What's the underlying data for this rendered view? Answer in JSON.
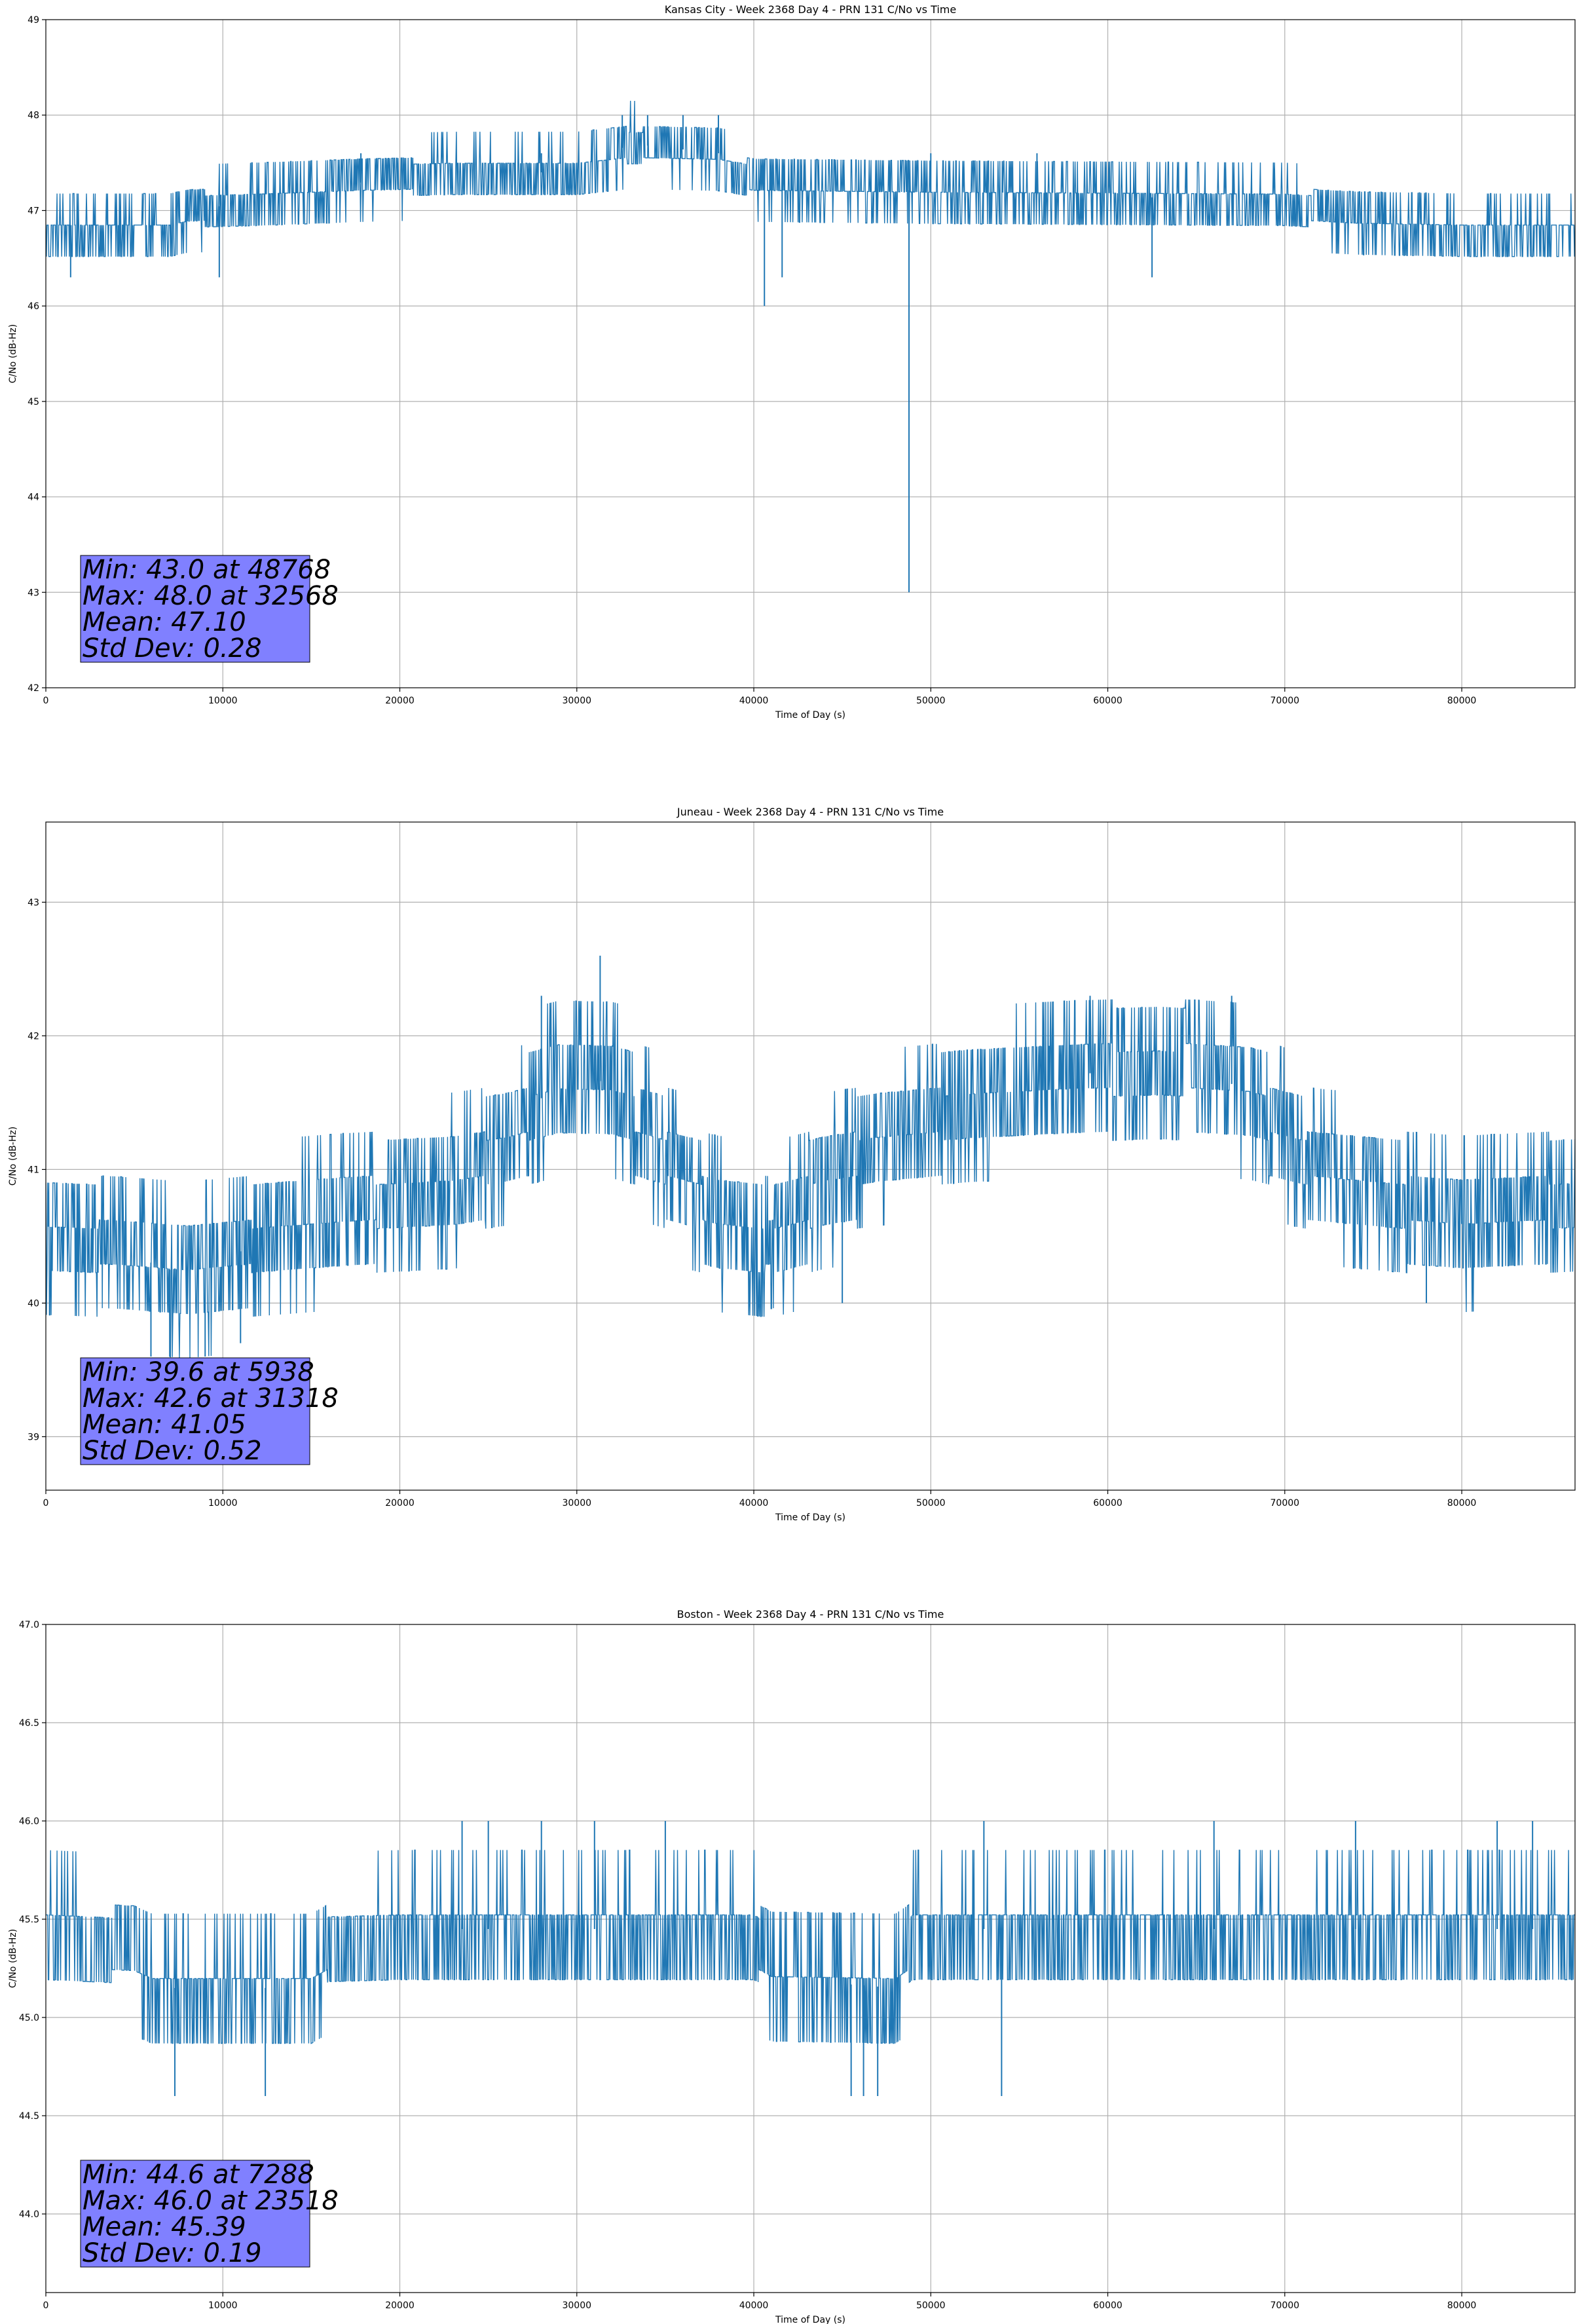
{
  "chart_data": [
    {
      "type": "line",
      "title": "Kansas City - Week 2368 Day 4 - PRN 131 C/No vs Time",
      "xlabel": "Time of Day (s)",
      "ylabel": "C/No (dB-Hz)",
      "xlim": [
        0,
        86400
      ],
      "ylim": [
        42,
        49
      ],
      "xticks": [
        0,
        10000,
        20000,
        30000,
        40000,
        50000,
        60000,
        70000,
        80000
      ],
      "yticks": [
        "42",
        "43",
        "44",
        "45",
        "46",
        "47",
        "48",
        "49"
      ],
      "grid": true,
      "color": "#1f77b4",
      "stats": [
        "Min: 43.0 at 48768",
        "Max: 48.0 at 32568",
        "Mean: 47.10",
        "Std Dev: 0.28"
      ],
      "profile": [
        [
          0,
          46.8
        ],
        [
          7000,
          46.8
        ],
        [
          8000,
          47.0
        ],
        [
          12000,
          47.1
        ],
        [
          18000,
          47.3
        ],
        [
          23000,
          47.4
        ],
        [
          30000,
          47.4
        ],
        [
          33000,
          47.7
        ],
        [
          38000,
          47.6
        ],
        [
          40000,
          47.3
        ],
        [
          50000,
          47.2
        ],
        [
          60000,
          47.15
        ],
        [
          70000,
          47.1
        ],
        [
          74000,
          46.9
        ],
        [
          80000,
          46.8
        ],
        [
          86400,
          46.8
        ]
      ],
      "spread": 0.33,
      "spikes": [
        [
          48768,
          43.0
        ],
        [
          40600,
          46.0
        ],
        [
          41600,
          46.3
        ],
        [
          9800,
          46.3
        ],
        [
          1400,
          46.3
        ],
        [
          62500,
          46.3
        ],
        [
          32568,
          48.0
        ],
        [
          34000,
          48.0
        ],
        [
          36000,
          48.0
        ],
        [
          38000,
          48.0
        ],
        [
          56000,
          47.6
        ],
        [
          17800,
          47.6
        ],
        [
          28000,
          47.6
        ],
        [
          50000,
          47.6
        ]
      ]
    },
    {
      "type": "line",
      "title": "Juneau - Week 2368 Day 4 - PRN 131 C/No vs Time",
      "xlabel": "Time of Day (s)",
      "ylabel": "C/No (dB-Hz)",
      "xlim": [
        0,
        86400
      ],
      "ylim": [
        38.6,
        43.6
      ],
      "xticks": [
        0,
        10000,
        20000,
        30000,
        40000,
        50000,
        60000,
        70000,
        80000
      ],
      "yticks": [
        "39",
        "40",
        "41",
        "42",
        "43"
      ],
      "grid": true,
      "color": "#1f77b4",
      "stats": [
        "Min: 39.6 at 5938",
        "Max: 42.6 at 31318",
        "Mean: 41.05",
        "Std Dev: 0.52"
      ],
      "profile": [
        [
          0,
          40.5
        ],
        [
          4000,
          40.4
        ],
        [
          8000,
          40.2
        ],
        [
          12000,
          40.45
        ],
        [
          17000,
          40.7
        ],
        [
          23000,
          40.9
        ],
        [
          26000,
          41.2
        ],
        [
          29000,
          41.7
        ],
        [
          32000,
          41.65
        ],
        [
          35000,
          41.1
        ],
        [
          38000,
          40.6
        ],
        [
          41000,
          40.4
        ],
        [
          44000,
          40.9
        ],
        [
          47000,
          41.2
        ],
        [
          52000,
          41.5
        ],
        [
          58000,
          41.7
        ],
        [
          63000,
          41.8
        ],
        [
          68000,
          41.6
        ],
        [
          71000,
          41.1
        ],
        [
          76000,
          40.8
        ],
        [
          80000,
          40.6
        ],
        [
          86400,
          40.8
        ]
      ],
      "spread": 0.55,
      "spikes": [
        [
          5938,
          39.6
        ],
        [
          31318,
          42.6
        ],
        [
          7000,
          39.6
        ],
        [
          9000,
          39.6
        ],
        [
          11000,
          39.7
        ],
        [
          45000,
          40.0
        ],
        [
          67000,
          42.3
        ],
        [
          59000,
          42.3
        ],
        [
          28000,
          42.3
        ],
        [
          78000,
          40.0
        ]
      ]
    },
    {
      "type": "line",
      "title": "Boston - Week 2368 Day 4 - PRN 131 C/No vs Time",
      "xlabel": "Time of Day (s)",
      "ylabel": "C/No (dB-Hz)",
      "xlim": [
        0,
        86400
      ],
      "ylim": [
        43.6,
        47.0
      ],
      "xticks": [
        0,
        10000,
        20000,
        30000,
        40000,
        50000,
        60000,
        70000,
        80000
      ],
      "yticks": [
        "44.0",
        "44.5",
        "45.0",
        "45.5",
        "46.0",
        "46.5",
        "47.0"
      ],
      "grid": true,
      "color": "#1f77b4",
      "stats": [
        "Min: 44.6 at 7288",
        "Max: 46.0 at 23518",
        "Mean: 45.39",
        "Std Dev: 0.19"
      ],
      "profile": [
        [
          0,
          45.45
        ],
        [
          5000,
          45.35
        ],
        [
          6000,
          45.15
        ],
        [
          15000,
          45.15
        ],
        [
          16000,
          45.4
        ],
        [
          20000,
          45.45
        ],
        [
          40000,
          45.45
        ],
        [
          41000,
          45.2
        ],
        [
          48000,
          45.15
        ],
        [
          49000,
          45.45
        ],
        [
          86400,
          45.45
        ]
      ],
      "spread": 0.3,
      "spikes": [
        [
          7288,
          44.6
        ],
        [
          12400,
          44.6
        ],
        [
          45500,
          44.6
        ],
        [
          46200,
          44.6
        ],
        [
          47000,
          44.6
        ],
        [
          54000,
          44.6
        ],
        [
          23518,
          46.0
        ],
        [
          25000,
          46.0
        ],
        [
          28000,
          46.0
        ],
        [
          31000,
          46.0
        ],
        [
          35000,
          46.0
        ],
        [
          53000,
          46.0
        ],
        [
          66000,
          46.0
        ],
        [
          74000,
          46.0
        ],
        [
          82000,
          46.0
        ],
        [
          84000,
          46.0
        ]
      ]
    }
  ]
}
